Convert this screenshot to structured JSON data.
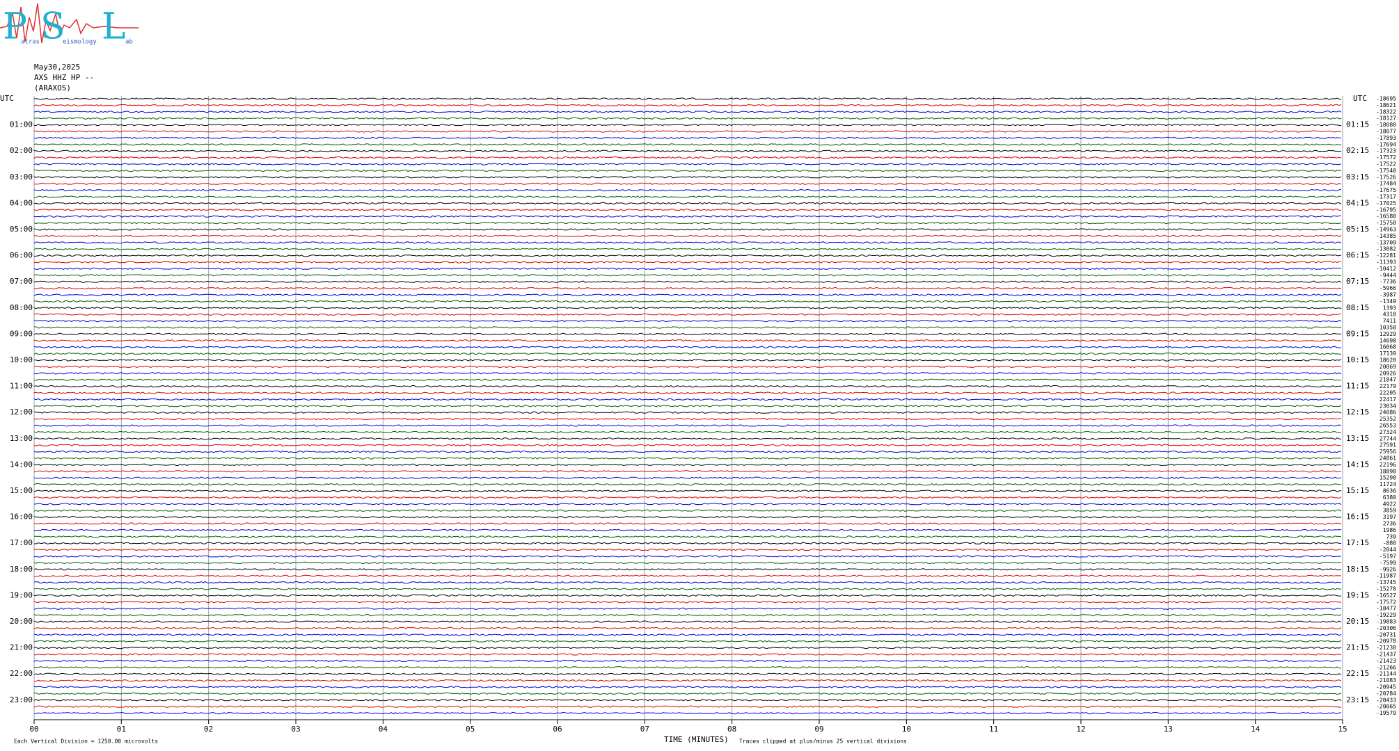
{
  "chart_data": {
    "type": "helicorder",
    "logo": {
      "letters": [
        "P",
        "S",
        "L"
      ],
      "words": [
        "atras",
        "eismology",
        "ab"
      ]
    },
    "title_lines": [
      "May30,2025",
      "AXS HHZ HP --",
      "(ARAXOS)"
    ],
    "left_axis_title": "UTC",
    "right_axis_title": "UTC",
    "left_labels": [
      "01:00",
      "02:00",
      "03:00",
      "04:00",
      "05:00",
      "06:00",
      "07:00",
      "08:00",
      "09:00",
      "10:00",
      "11:00",
      "12:00",
      "13:00",
      "14:00",
      "15:00",
      "16:00",
      "17:00",
      "18:00",
      "19:00",
      "20:00",
      "21:00",
      "22:00",
      "23:00"
    ],
    "right_labels": [
      "01:15",
      "02:15",
      "03:15",
      "04:15",
      "05:15",
      "06:15",
      "07:15",
      "08:15",
      "09:15",
      "10:15",
      "11:15",
      "12:15",
      "13:15",
      "14:15",
      "15:15",
      "16:15",
      "17:15",
      "18:15",
      "19:15",
      "20:15",
      "21:15",
      "22:15",
      "23:15"
    ],
    "row_offsets": [
      -18695,
      -18621,
      -18322,
      -18127,
      -18080,
      -18077,
      -17893,
      -17694,
      -17323,
      -17572,
      -17522,
      -17540,
      -17526,
      -17484,
      -17675,
      -17317,
      -17025,
      -16795,
      -16580,
      -15758,
      -14963,
      -14385,
      -13709,
      -13082,
      -12281,
      -11393,
      -10412,
      -9444,
      -7736,
      -5966,
      -3987,
      -1349,
      1393,
      4310,
      7411,
      10358,
      12929,
      14698,
      16068,
      17139,
      18620,
      20069,
      20926,
      21847,
      22179,
      22205,
      22417,
      23034,
      24086,
      25352,
      26553,
      27324,
      27744,
      27591,
      25956,
      24861,
      22196,
      18898,
      15298,
      11724,
      8636,
      6380,
      4922,
      3859,
      3197,
      2736,
      1986,
      739,
      -880,
      -2044,
      -5197,
      -7599,
      -9926,
      -11987,
      -13745,
      -15278,
      -16527,
      -17572,
      -18477,
      -19229,
      -19883,
      -20306,
      -20731,
      -20978,
      -21230,
      -21437,
      -21423,
      -21266,
      -21144,
      -21083,
      -20945,
      -20784,
      -20433,
      -20065,
      -19579
    ],
    "trace_colors": [
      "#000000",
      "#e00000",
      "#0000e0",
      "#006000"
    ],
    "xlim": [
      0,
      15
    ],
    "xticks": [
      {
        "value": 0,
        "label": "00"
      },
      {
        "value": 1,
        "label": "01"
      },
      {
        "value": 2,
        "label": "02"
      },
      {
        "value": 3,
        "label": "03"
      },
      {
        "value": 4,
        "label": "04"
      },
      {
        "value": 5,
        "label": "05"
      },
      {
        "value": 6,
        "label": "06"
      },
      {
        "value": 7,
        "label": "07"
      },
      {
        "value": 8,
        "label": "08"
      },
      {
        "value": 9,
        "label": "09"
      },
      {
        "value": 10,
        "label": "10"
      },
      {
        "value": 11,
        "label": "11"
      },
      {
        "value": 12,
        "label": "12"
      },
      {
        "value": 13,
        "label": "13"
      },
      {
        "value": 14,
        "label": "14"
      },
      {
        "value": 15,
        "label": "15"
      }
    ],
    "xlabel": "TIME (MINUTES)",
    "footnote_left": "Each Vertical Division = 1250.00 microvolts",
    "footnote_right": "Traces clipped at plus/minus 25 vertical divisions",
    "grid": true
  }
}
